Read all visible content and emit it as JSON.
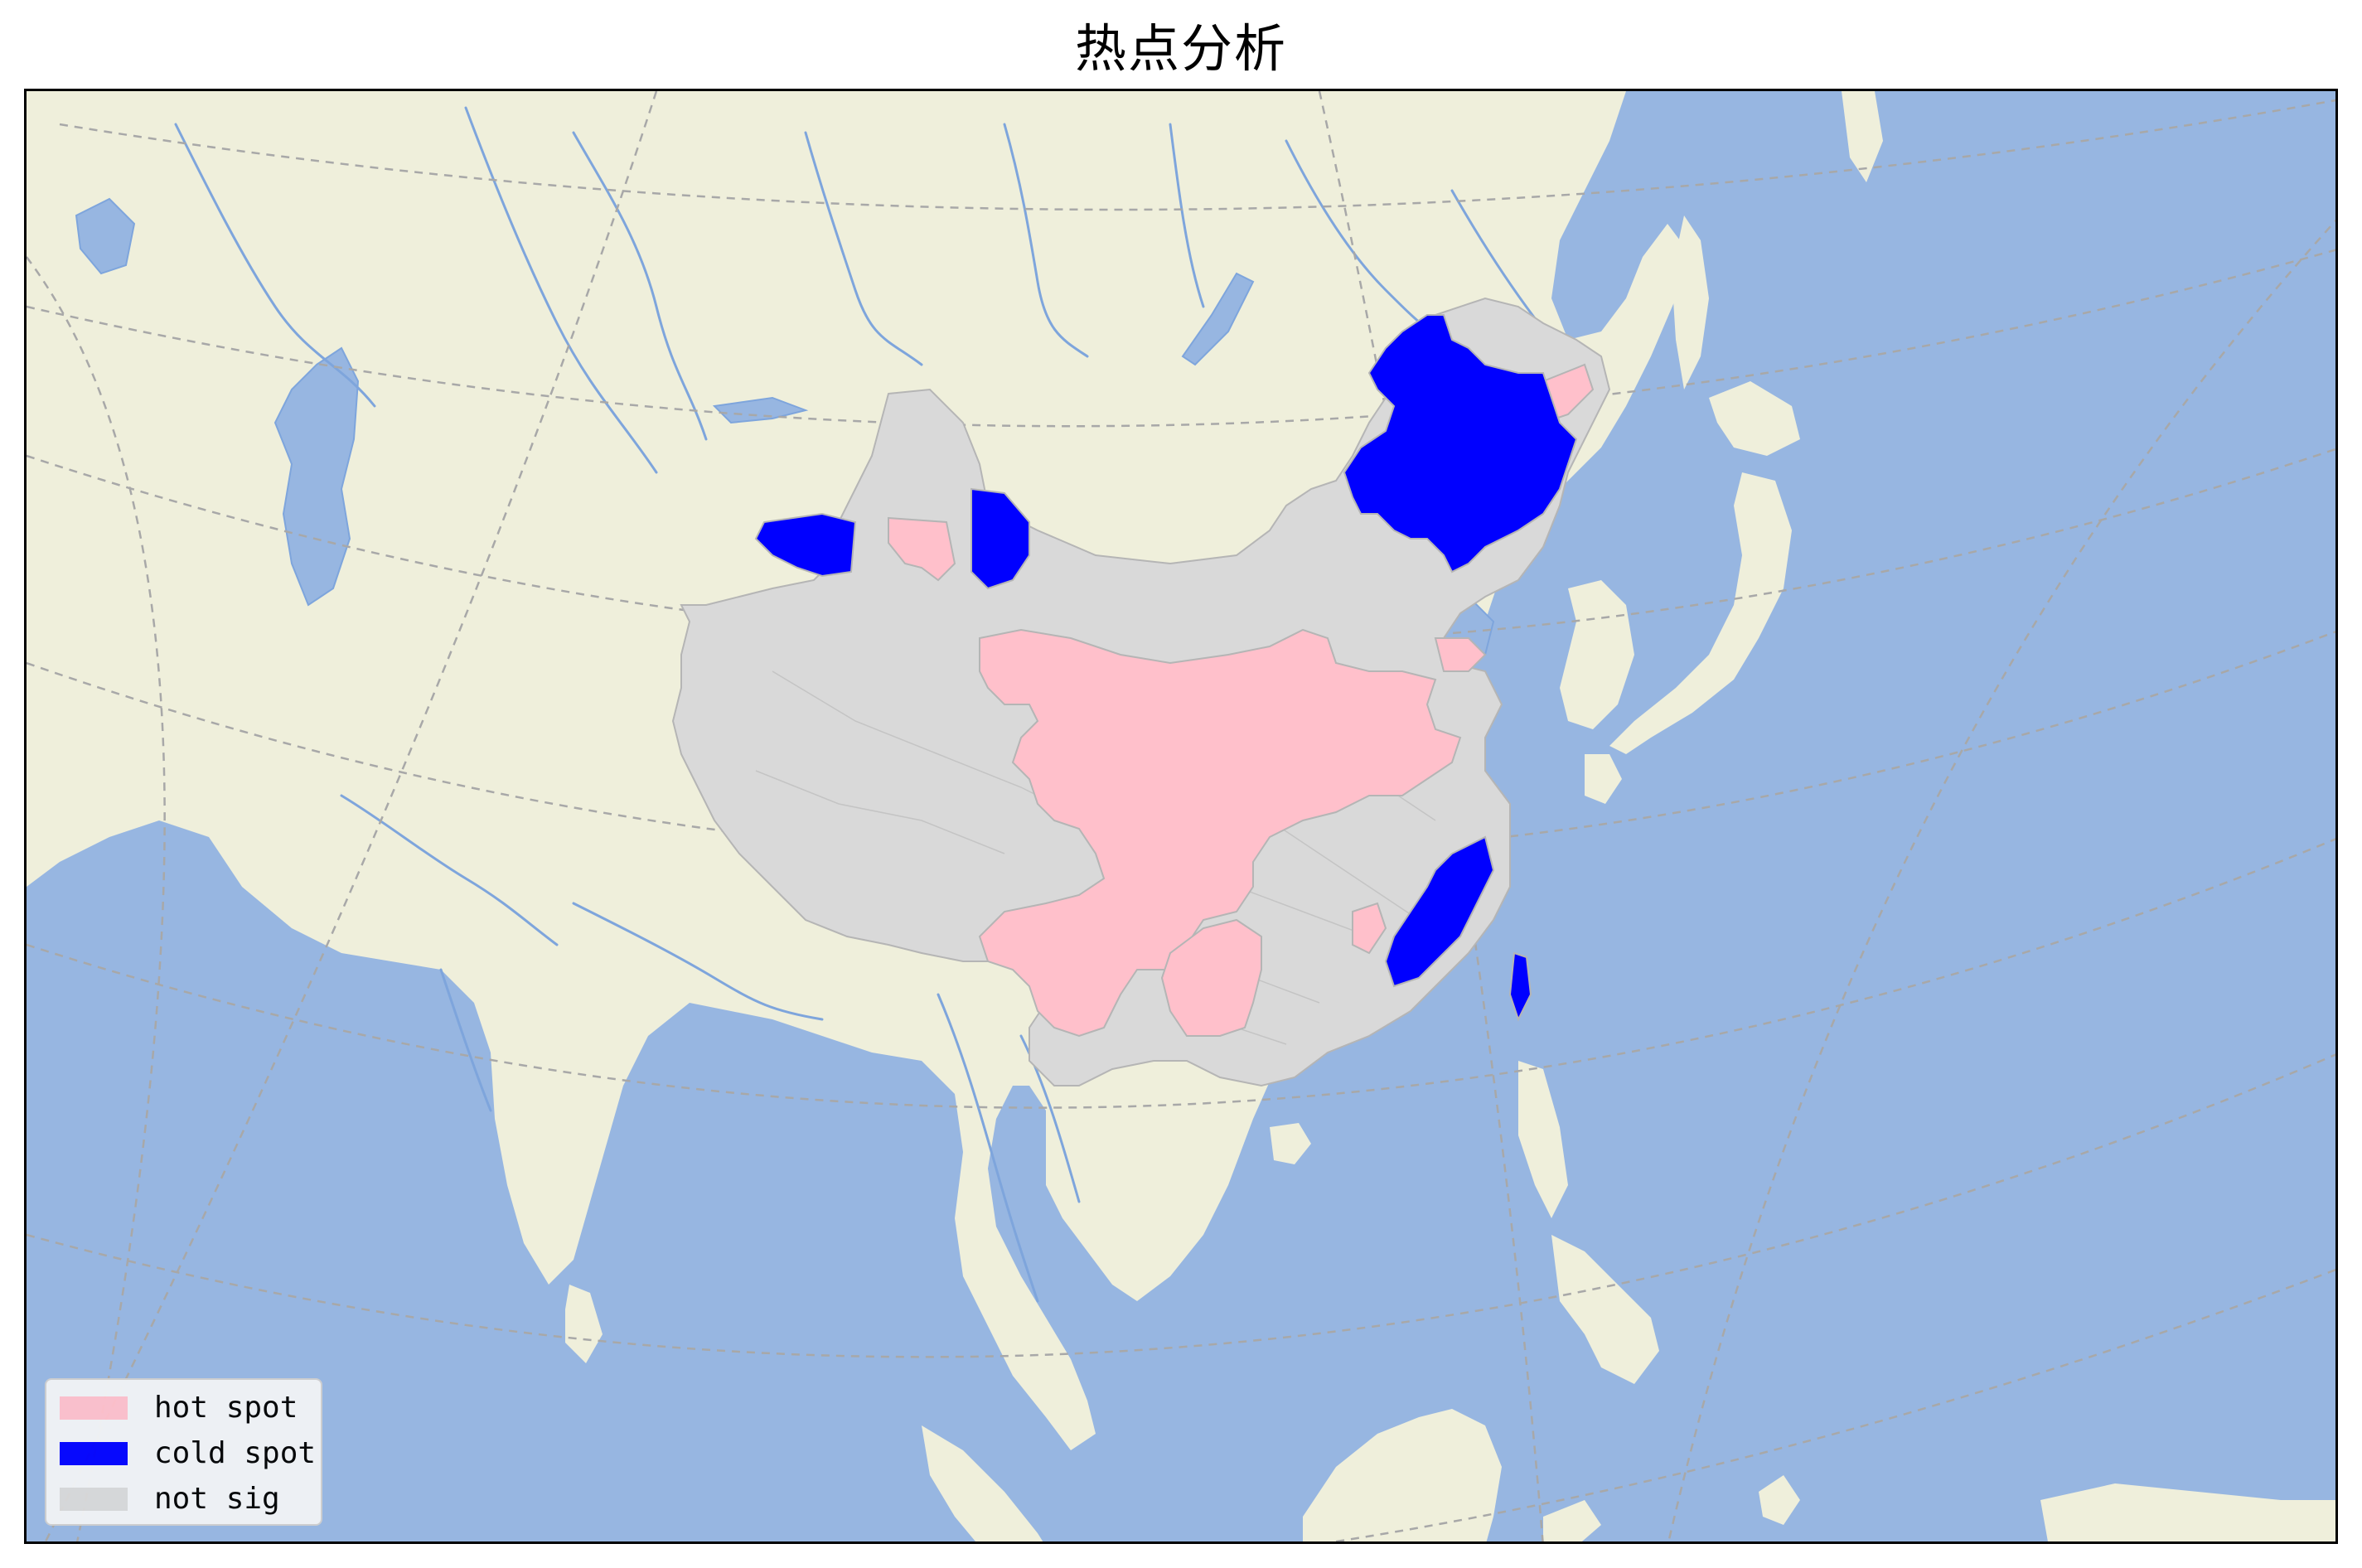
{
  "title": "热点分析",
  "colors": {
    "ocean": "#97b6e1",
    "land": "#efefdb",
    "river": "#7ea5dc",
    "graticule": "#a8a8a8",
    "hot_spot": "#ffc0cb",
    "cold_spot": "#0000ff",
    "not_sig": "#d9d9d9",
    "region_border": "#b5b5b5"
  },
  "legend": {
    "items": [
      {
        "label": "hot spot",
        "color": "#ffc0cb"
      },
      {
        "label": "cold spot",
        "color": "#0000ff"
      },
      {
        "label": "not sig",
        "color": "#d9d9d9"
      }
    ]
  }
}
